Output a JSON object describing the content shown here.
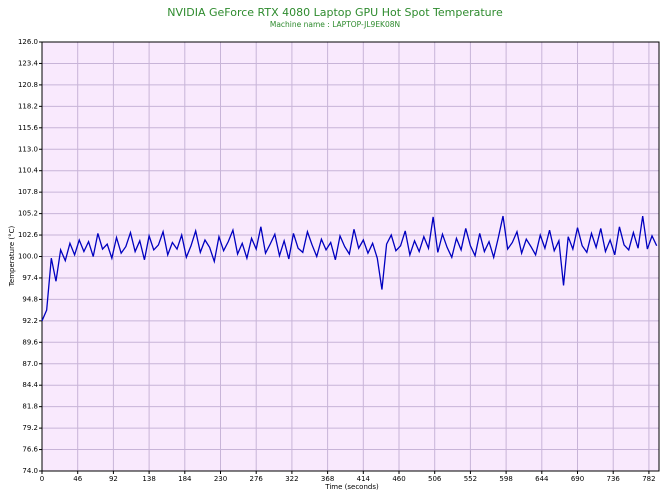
{
  "chart_data": {
    "type": "line",
    "title": "NVIDIA GeForce RTX 4080 Laptop GPU Hot Spot Temperature",
    "subtitle": "Machine name : LAPTOP-JL9EK08N",
    "x_label": "Time (seconds)",
    "y_label": "Temperature (°C)",
    "x": [
      0,
      6,
      12,
      18,
      24,
      30,
      36,
      42,
      48,
      54,
      60,
      66,
      72,
      78,
      84,
      90,
      96,
      102,
      108,
      114,
      120,
      126,
      132,
      138,
      144,
      150,
      156,
      162,
      168,
      174,
      180,
      186,
      192,
      198,
      204,
      210,
      216,
      222,
      228,
      234,
      240,
      246,
      252,
      258,
      264,
      270,
      276,
      282,
      288,
      294,
      300,
      306,
      312,
      318,
      324,
      330,
      336,
      342,
      348,
      354,
      360,
      366,
      372,
      378,
      384,
      390,
      396,
      402,
      408,
      414,
      420,
      426,
      432,
      438,
      444,
      450,
      456,
      462,
      468,
      474,
      480,
      486,
      492,
      498,
      504,
      510,
      516,
      522,
      528,
      534,
      540,
      546,
      552,
      558,
      564,
      570,
      576,
      582,
      588,
      594,
      600,
      606,
      612,
      618,
      624,
      630,
      636,
      642,
      648,
      654,
      660,
      666,
      672,
      678,
      684,
      690,
      696,
      702,
      708,
      714,
      720,
      726,
      732,
      738,
      744,
      750,
      756,
      762,
      768,
      774,
      780,
      786,
      792
    ],
    "series": [
      {
        "name": "GPU Hot Spot Temperature",
        "color": "#0000c0",
        "values": [
          92.2,
          93.5,
          99.8,
          97.0,
          100.8,
          99.5,
          101.6,
          100.2,
          102.0,
          100.6,
          101.8,
          100.0,
          102.8,
          100.9,
          101.5,
          99.8,
          102.3,
          100.4,
          101.2,
          102.9,
          100.6,
          101.9,
          99.6,
          102.5,
          100.8,
          101.4,
          103.0,
          100.2,
          101.7,
          100.9,
          102.6,
          99.9,
          101.3,
          103.1,
          100.5,
          102.0,
          101.1,
          99.4,
          102.4,
          100.7,
          101.8,
          103.2,
          100.3,
          101.6,
          99.8,
          102.2,
          100.9,
          103.6,
          100.4,
          101.5,
          102.7,
          100.1,
          101.9,
          99.7,
          102.8,
          101.0,
          100.5,
          103.0,
          101.4,
          100.0,
          102.1,
          100.8,
          101.7,
          99.6,
          102.5,
          101.2,
          100.3,
          103.3,
          101.0,
          102.0,
          100.4,
          101.6,
          99.8,
          96.0,
          101.5,
          102.6,
          100.7,
          101.3,
          103.1,
          100.2,
          101.9,
          100.6,
          102.4,
          101.0,
          104.8,
          100.5,
          102.7,
          101.1,
          99.9,
          102.2,
          100.8,
          103.4,
          101.3,
          100.1,
          102.8,
          100.6,
          101.8,
          99.9,
          102.3,
          104.9,
          100.9,
          101.7,
          103.0,
          100.4,
          102.1,
          101.2,
          100.2,
          102.6,
          101.0,
          103.2,
          100.7,
          101.9,
          96.5,
          102.4,
          100.9,
          103.5,
          101.3,
          100.5,
          102.8,
          101.1,
          103.4,
          100.6,
          102.0,
          100.2,
          103.6,
          101.4,
          100.8,
          102.9,
          101.0,
          104.9,
          100.9,
          102.5,
          101.3
        ]
      }
    ],
    "xlim": [
      0,
      795
    ],
    "xticks": [
      0,
      46,
      92,
      138,
      184,
      230,
      276,
      322,
      368,
      414,
      460,
      506,
      552,
      598,
      644,
      690,
      736,
      782
    ],
    "ylim": [
      74,
      126
    ],
    "yticks": [
      {
        "value": 74,
        "label": "74.0"
      },
      76.6,
      79.2,
      81.8,
      84.4,
      {
        "value": 87,
        "label": "87.0"
      },
      89.6,
      92.2,
      94.8,
      97.4,
      {
        "value": 100,
        "label": "100.0"
      },
      102.6,
      105.2,
      107.8,
      110.4,
      {
        "value": 113,
        "label": "113.0"
      },
      115.6,
      118.2,
      120.8,
      123.4,
      {
        "value": 126,
        "label": "126.0"
      }
    ],
    "grid": true,
    "background": "#f9e9fd",
    "grid_color": "#c8b4d8"
  }
}
